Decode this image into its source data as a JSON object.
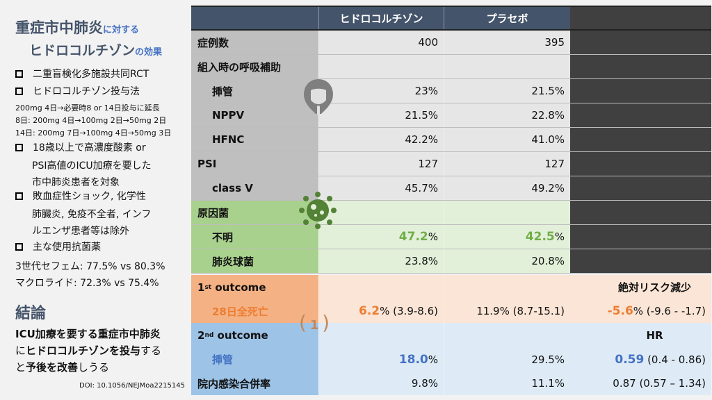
{
  "title": {
    "main1": "重症市中肺炎",
    "small1": "に対する",
    "main2": "ヒドロコルチゾン",
    "small2": "の効果"
  },
  "bullets": [
    "二重盲検化多施設共同RCT",
    "ヒドロコルチゾン投与法",
    "18歳以上で高濃度酸素 or",
    "敗血症性ショック, 化学性",
    "主な使用抗菌薬"
  ],
  "bullet_cont": [
    "PSI高値のICU加療を要した",
    "市中肺炎患者を対象",
    "肺臓炎, 免疫不全者, インフ",
    "ルエンザ患者等は除外"
  ],
  "dosing": [
    "200mg 4日→必要時8 or 14日投与に延長",
    "8日: 200mg 4日→100mg 2日→50mg 2日",
    "14日: 200mg 7日→100mg 4日→50mg 3日"
  ],
  "antibiotics": [
    "3世代セフェム: 77.5% vs 80.3%",
    "マクロライド: 72.3% vs 75.4%"
  ],
  "conclusion": {
    "heading": "結論",
    "l1": "ICU加療を要する重症市中肺炎",
    "l2a": "に",
    "l2b": "ヒドロコルチゾンを投与",
    "l2c": "する",
    "l3a": "と",
    "l3b": "予後を改善",
    "l3c": "しうる"
  },
  "doi": "DOI: 10.1056/NEJMoa2215145",
  "table": {
    "header": [
      "",
      "ヒドロコルチゾン",
      "プラセボ"
    ],
    "rows": [
      {
        "label": "症例数",
        "a": "400",
        "b": "395"
      },
      {
        "label": "組入時の呼吸補助",
        "a": "",
        "b": ""
      },
      {
        "label": "挿管",
        "a": "23%",
        "b": "21.5%"
      },
      {
        "label": "NPPV",
        "a": "21.5%",
        "b": "22.8%"
      },
      {
        "label": "HFNC",
        "a": "42.2%",
        "b": "41.0%"
      },
      {
        "label": "PSI",
        "a": "127",
        "b": "127"
      },
      {
        "label": "class Ⅴ",
        "a": "45.7%",
        "b": "49.2%"
      },
      {
        "label": "原因菌",
        "a": "",
        "b": ""
      },
      {
        "label": "不明",
        "a_hl": "47.2",
        "a": "%",
        "b_hl": "42.5",
        "b": "%"
      },
      {
        "label": "肺炎球菌",
        "a": "23.8%",
        "b": "20.8%"
      }
    ],
    "primary": {
      "label": "1",
      "sup": "st",
      "rest": " outcome",
      "col3_head": "絶対リスク減少",
      "row_label": "28日全死亡",
      "a_hl": "6.2",
      "a": "% (3.9-8.6)",
      "b": "11.9% (8.7-15.1)",
      "c_hl": "-5.6",
      "c": "% (-9.6 - -1.7)"
    },
    "secondary": {
      "label": "2",
      "sup": "nd",
      "rest": " outcome",
      "col3_head": "HR",
      "rows": [
        {
          "label": "挿管",
          "a_hl": "18.0",
          "a": "%",
          "b": "29.5%",
          "c_hl": "0.59",
          "c": " (0.4 - 0.86)"
        },
        {
          "label": "院内感染合併率",
          "a": "9.8%",
          "b": "11.1%",
          "c": "0.87 (0.57 – 1.34)"
        }
      ]
    },
    "badge": "1"
  },
  "colors": {
    "header": "#44546a",
    "orange": "#ed7d31",
    "blue": "#4472c4",
    "green": "#70ad47"
  }
}
